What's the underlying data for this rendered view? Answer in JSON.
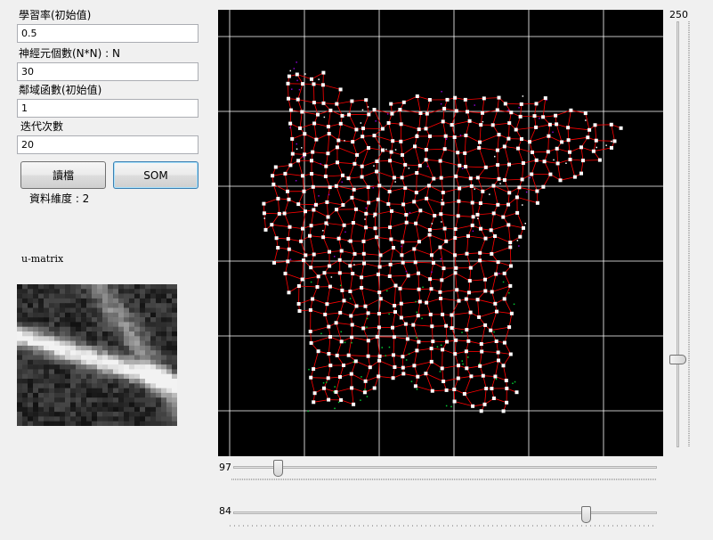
{
  "form": {
    "learning_rate_label": "學習率(初始值)",
    "learning_rate_value": "0.5",
    "neuron_count_label": "神經元個數(N*N) : N",
    "neuron_count_value": "30",
    "neighborhood_label": "鄰域函數(初始值)",
    "neighborhood_value": "1",
    "iterations_label": "迭代次數",
    "iterations_value": "20"
  },
  "buttons": {
    "read_file": "讀檔",
    "som": "SOM"
  },
  "data_dim_label": "資料維度 : 2",
  "umatrix_label": "u-matrix",
  "sliders": {
    "horizontal_top": {
      "label": "97",
      "value": 97,
      "min": 0,
      "max": 1000
    },
    "horizontal_bottom": {
      "label": "84",
      "value": 84,
      "min": 0,
      "max": 100
    },
    "vertical": {
      "label": "250",
      "value": 50,
      "min": 0,
      "max": 250
    }
  },
  "colors": {
    "plot_background": "#000000",
    "grid_line": "#ffffff",
    "som_edge": "#ff0000",
    "som_node": "#ffffff",
    "data_class_a": "#8800cc",
    "data_class_b": "#00cc33"
  }
}
